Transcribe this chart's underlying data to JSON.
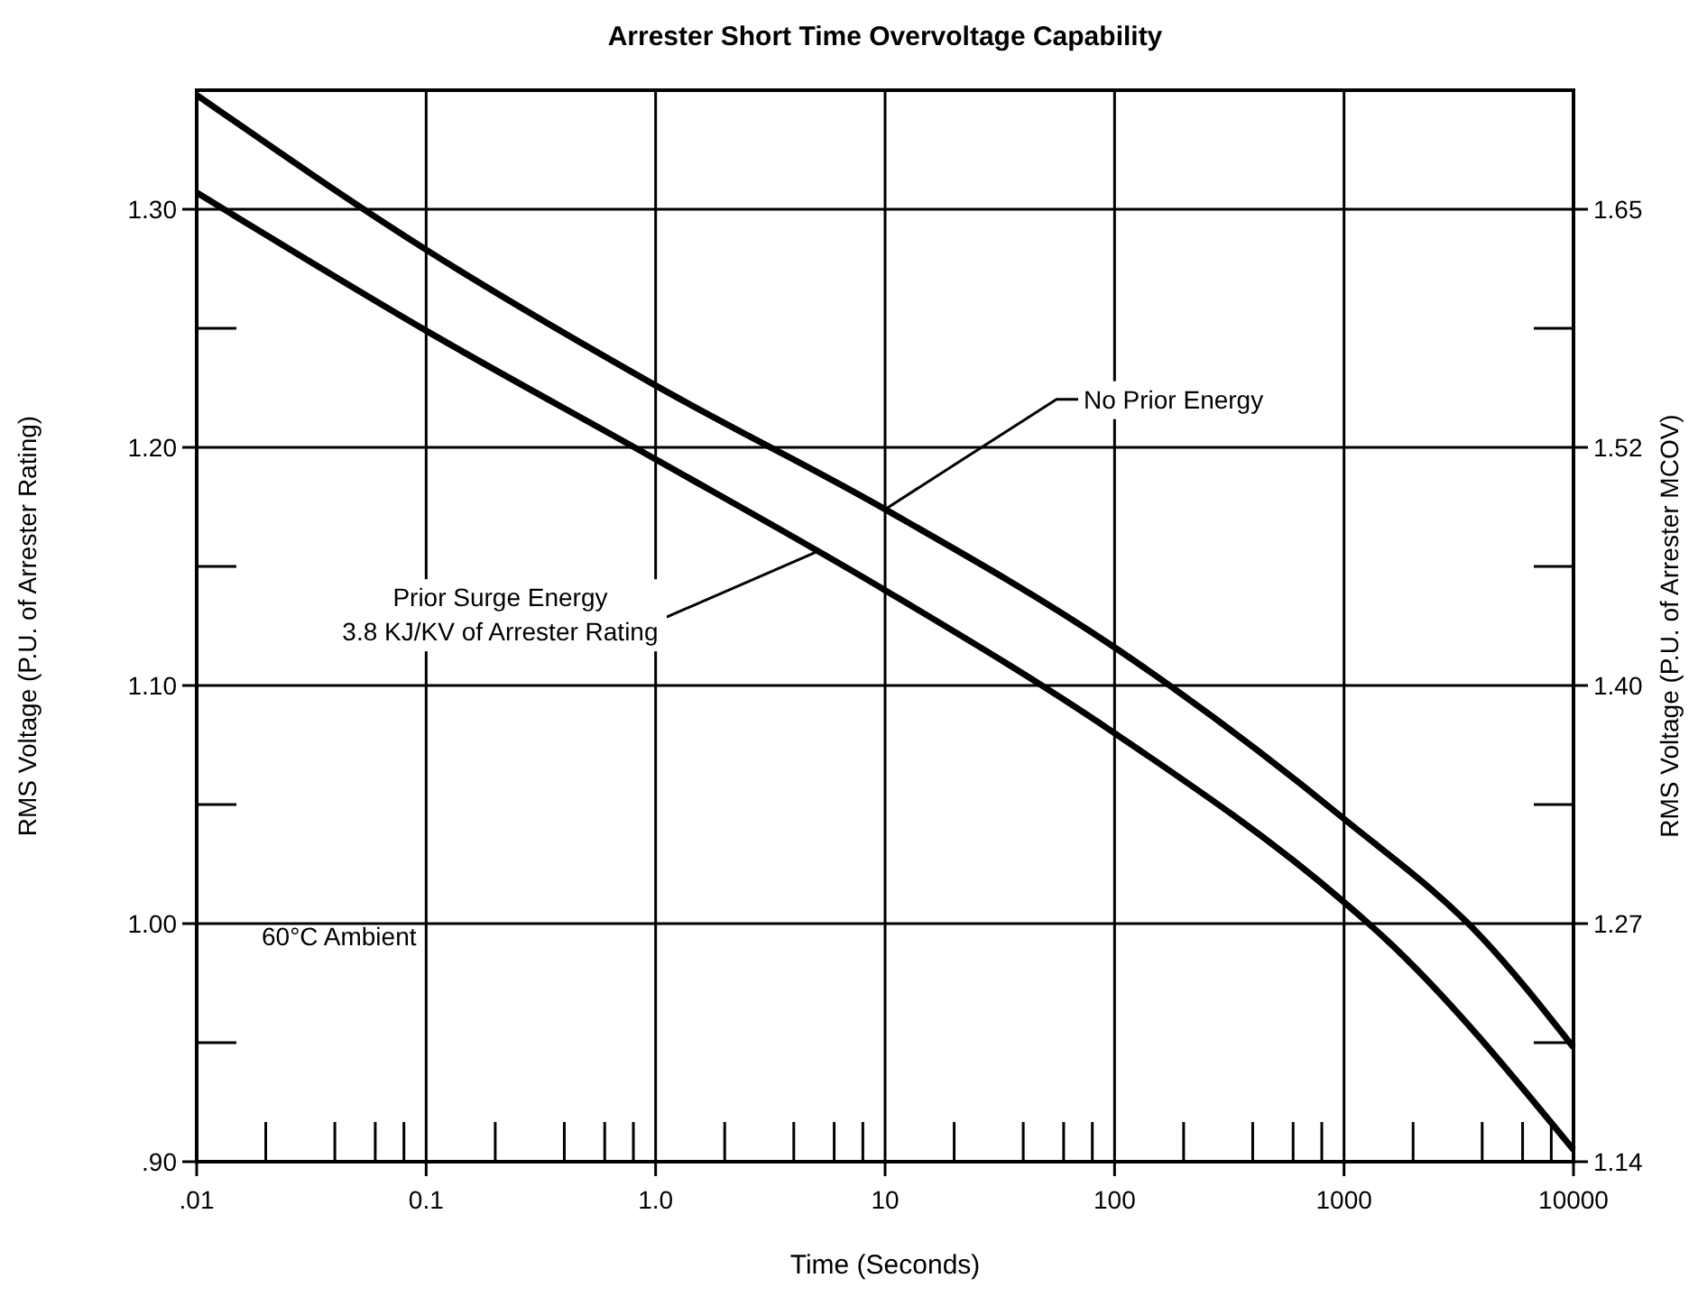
{
  "chart_data": {
    "type": "line",
    "title": "Arrester Short Time Overvoltage Capability",
    "xlabel": "Time (Seconds)",
    "ylabel": "RMS Voltage (P.U. of Arrester Rating)",
    "y2label": "RMS Voltage (P.U. of Arrester MCOV)",
    "log": "x",
    "grid": true,
    "marker": "none",
    "line_style": "solid",
    "xlim": [
      0.01,
      10000
    ],
    "ylim": [
      0.9,
      1.35
    ],
    "y2lim": [
      1.143,
      1.7145
    ],
    "xticks": [
      {
        "value": 0.01,
        "label": ".01"
      },
      {
        "value": 0.1,
        "label": "0.1"
      },
      {
        "value": 1,
        "label": "1.0"
      },
      10,
      100,
      1000,
      10000
    ],
    "yticks": [
      {
        "value": 0.9,
        "label": ".90"
      },
      {
        "value": 1.0,
        "label": "1.00"
      },
      {
        "value": 1.1,
        "label": "1.10"
      },
      {
        "value": 1.2,
        "label": "1.20"
      },
      {
        "value": 1.3,
        "label": "1.30"
      }
    ],
    "y2ticks": [
      {
        "value": 1.143,
        "label": "1.14"
      },
      {
        "value": 1.27,
        "label": "1.27"
      },
      {
        "value": 1.397,
        "label": "1.40"
      },
      {
        "value": 1.524,
        "label": "1.52"
      },
      {
        "value": 1.651,
        "label": "1.65"
      }
    ],
    "x": [
      0.01,
      0.1,
      1,
      10,
      100,
      1000,
      4000,
      10000
    ],
    "series": [
      {
        "color": "#000000",
        "values": [
          1.348,
          1.283,
          1.226,
          1.174,
          1.116,
          1.044,
          0.994,
          0.948
        ]
      },
      {
        "color": "#000000",
        "x": [
          0.01,
          0.1,
          1,
          10,
          100,
          1000,
          1500,
          10000
        ],
        "values": [
          1.307,
          1.249,
          1.195,
          1.14,
          1.08,
          1.009,
          0.994,
          0.905
        ]
      }
    ],
    "annotations": [
      {
        "text": "No Prior Energy",
        "x": 10,
        "y": 1.174
      },
      {
        "text": "Prior Surge Energy\n3.8 KJ/KV of Arrester Rating",
        "x": 5,
        "y": 1.156
      },
      "60°C Ambient"
    ]
  }
}
